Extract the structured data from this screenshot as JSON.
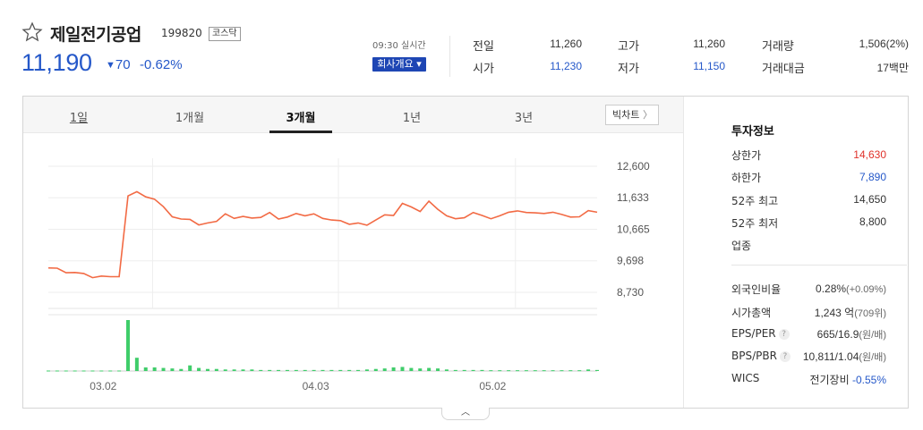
{
  "stock": {
    "name": "제일전기공업",
    "code": "199820",
    "market": "코스닥",
    "price": "11,190",
    "change_arrow": "▼",
    "change": "70",
    "change_pct": "-0.62%"
  },
  "realtime": {
    "label": "09:30 실시간",
    "company_button": "회사개요 ▾"
  },
  "quotes": [
    {
      "label": "전일",
      "value": "11,260",
      "color": "#333333"
    },
    {
      "label": "시가",
      "value": "11,230",
      "color": "#2558c9"
    },
    {
      "label": "고가",
      "value": "11,260",
      "color": "#333333"
    },
    {
      "label": "저가",
      "value": "11,150",
      "color": "#2558c9"
    },
    {
      "label": "거래량",
      "value": "1,506(2%)",
      "color": "#333333"
    },
    {
      "label": "거래대금",
      "value": "17백만",
      "color": "#333333"
    }
  ],
  "tabs": [
    "1일",
    "1개월",
    "3개월",
    "1년",
    "3년"
  ],
  "active_tab": "3개월",
  "big_chart_button": "빅차트",
  "big_chart_arrow": "〉",
  "toggle_icon": "︿",
  "chart_data": {
    "type": "line",
    "yticks": [
      12600,
      11633,
      10665,
      9698,
      8730
    ],
    "ytick_labels": [
      "12,600",
      "11,633",
      "10,665",
      "9,698",
      "8,730"
    ],
    "ylim": [
      8730,
      12600
    ],
    "xtick_labels": [
      "03.02",
      "04.03",
      "05.02"
    ],
    "price": [
      9480,
      9470,
      9330,
      9340,
      9310,
      9180,
      9230,
      9210,
      9210,
      11690,
      11820,
      11660,
      11590,
      11360,
      11050,
      10980,
      10970,
      10800,
      10860,
      10910,
      11140,
      11000,
      11060,
      11010,
      11030,
      11180,
      10980,
      11040,
      11150,
      11080,
      11140,
      11000,
      10950,
      10930,
      10820,
      10860,
      10790,
      10950,
      11110,
      11090,
      11460,
      11350,
      11210,
      11530,
      11280,
      11080,
      10990,
      11020,
      11180,
      11090,
      10990,
      11080,
      11190,
      11230,
      11180,
      11170,
      11150,
      11190,
      11120,
      11040,
      11050,
      11240,
      11190
    ],
    "volume": [
      0.9,
      0.9,
      0.9,
      0.9,
      0.9,
      0.9,
      0.9,
      0.9,
      0.9,
      100,
      26,
      7,
      7,
      6,
      5,
      4,
      11,
      6,
      4,
      4,
      3,
      3,
      3,
      3,
      2,
      2,
      2,
      2,
      2,
      2,
      2,
      2,
      2,
      2,
      2,
      2,
      3,
      4,
      5,
      7,
      8,
      6,
      5,
      6,
      5,
      3,
      2,
      2,
      2,
      2,
      1.5,
      1.5,
      1.5,
      1.5,
      1.5,
      1.5,
      1.5,
      1.5,
      1.5,
      1.5,
      1.5,
      3,
      2
    ]
  },
  "invest": {
    "title": "투자정보",
    "rows1": [
      {
        "label": "상한가",
        "value": "14,630",
        "cls": "red"
      },
      {
        "label": "하한가",
        "value": "7,890",
        "cls": "blue"
      },
      {
        "label": "52주 최고",
        "value": "14,650",
        "cls": ""
      },
      {
        "label": "52주 최저",
        "value": "8,800",
        "cls": ""
      },
      {
        "label": "업종",
        "value": "",
        "cls": ""
      }
    ],
    "foreign_label": "외국인비율",
    "foreign_value": "0.28%",
    "foreign_sub": "(+0.09%)",
    "mcap_label": "시가총액",
    "mcap_value": "1,243 억",
    "mcap_sub": "(709위)",
    "eps_label": "EPS/PER",
    "eps_value": "665/16.9",
    "eps_sub": "(원/배)",
    "bps_label": "BPS/PBR",
    "bps_value": "10,811/1.04",
    "bps_sub": "(원/배)",
    "wics_label": "WICS",
    "wics_value": "전기장비",
    "wics_change": "-0.55%",
    "help_icon": "?"
  }
}
